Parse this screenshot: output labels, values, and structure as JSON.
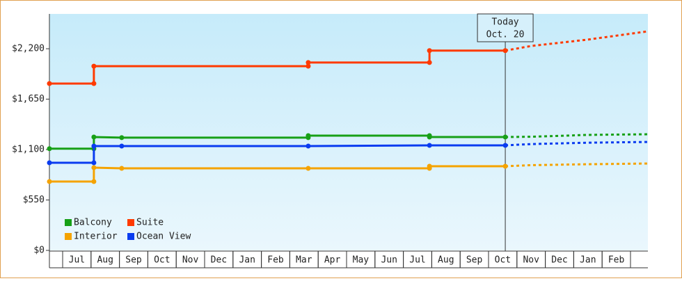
{
  "chart_data": {
    "type": "line",
    "xlim": [
      -0.466,
      20.613
    ],
    "ylim": [
      0,
      2580
    ],
    "xticks": [
      {
        "value": 0.5,
        "label": "Jul"
      },
      {
        "value": 1.5,
        "label": "Aug"
      },
      {
        "value": 2.5,
        "label": "Sep"
      },
      {
        "value": 3.5,
        "label": "Oct"
      },
      {
        "value": 4.5,
        "label": "Nov"
      },
      {
        "value": 5.5,
        "label": "Dec"
      },
      {
        "value": 6.5,
        "label": "Jan"
      },
      {
        "value": 7.5,
        "label": "Feb"
      },
      {
        "value": 8.5,
        "label": "Mar"
      },
      {
        "value": 9.5,
        "label": "Apr"
      },
      {
        "value": 10.5,
        "label": "May"
      },
      {
        "value": 11.5,
        "label": "Jun"
      },
      {
        "value": 12.5,
        "label": "Jul"
      },
      {
        "value": 13.5,
        "label": "Aug"
      },
      {
        "value": 14.5,
        "label": "Sep"
      },
      {
        "value": 15.5,
        "label": "Oct"
      },
      {
        "value": 16.5,
        "label": "Nov"
      },
      {
        "value": 17.5,
        "label": "Dec"
      },
      {
        "value": 18.5,
        "label": "Jan"
      },
      {
        "value": 19.5,
        "label": "Feb"
      }
    ],
    "yticks": [
      {
        "value": 0,
        "label": "$0"
      },
      {
        "value": 550,
        "label": "$550"
      },
      {
        "value": 1100,
        "label": "$1,100"
      },
      {
        "value": 1650,
        "label": "$1,650"
      },
      {
        "value": 2200,
        "label": "$2,200"
      }
    ],
    "annotation": {
      "x": 15.59,
      "lines": [
        "Today",
        "Oct. 20"
      ]
    },
    "series": [
      {
        "name": "Balcony",
        "color": "#17a017",
        "x": [
          -0.466,
          1.1,
          1.1,
          2.08,
          8.65,
          8.65,
          12.92,
          12.92,
          15.59
        ],
        "values": [
          1110,
          1110,
          1237,
          1230,
          1230,
          1252,
          1252,
          1237,
          1237
        ],
        "forecast_x": [
          15.59,
          16.5,
          18.5,
          20.613
        ],
        "forecast_values": [
          1237,
          1240,
          1260,
          1267
        ]
      },
      {
        "name": "Suite",
        "color": "#ff3a00",
        "x": [
          -0.466,
          1.1,
          1.1,
          8.65,
          8.65,
          12.92,
          12.92,
          15.59
        ],
        "values": [
          1820,
          1820,
          2010,
          2010,
          2050,
          2050,
          2180,
          2180
        ],
        "forecast_x": [
          15.59,
          16.5,
          18.5,
          20.613
        ],
        "forecast_values": [
          2180,
          2230,
          2300,
          2390
        ]
      },
      {
        "name": "Interior",
        "color": "#f5a300",
        "x": [
          -0.466,
          1.1,
          1.1,
          2.08,
          8.65,
          12.92,
          12.92,
          15.59
        ],
        "values": [
          751,
          751,
          903,
          895,
          895,
          895,
          918,
          918
        ],
        "forecast_x": [
          15.59,
          16.5,
          18.5,
          20.613
        ],
        "forecast_values": [
          918,
          930,
          940,
          948
        ]
      },
      {
        "name": "Ocean View",
        "color": "#0a3cf0",
        "x": [
          -0.466,
          1.1,
          1.1,
          2.08,
          8.65,
          12.92,
          15.59
        ],
        "values": [
          956,
          956,
          1138,
          1138,
          1138,
          1146,
          1146
        ],
        "forecast_x": [
          15.59,
          16.5,
          18.5,
          20.613
        ],
        "forecast_values": [
          1146,
          1160,
          1175,
          1183
        ]
      }
    ]
  }
}
